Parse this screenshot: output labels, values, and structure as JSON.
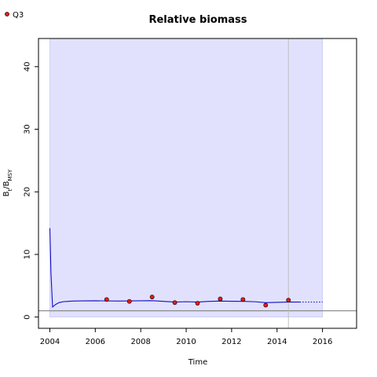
{
  "chart_data": {
    "type": "line",
    "title": "Relative biomass",
    "xlabel": "Time",
    "ylabel": {
      "base": "B",
      "sub1": "t",
      "sep": "/B",
      "sub2": "MSY"
    },
    "xlim": [
      2003.5,
      2017.5
    ],
    "ylim": [
      -1.8,
      44.5
    ],
    "xticks": [
      2004,
      2006,
      2008,
      2010,
      2012,
      2014,
      2016
    ],
    "xtick_labels": [
      "2004",
      "2006",
      "2008",
      "2010",
      "2012",
      "2014",
      "2016"
    ],
    "yticks": [
      0,
      10,
      20,
      30,
      40
    ],
    "ytick_labels": [
      "0",
      "10",
      "20",
      "30",
      "40"
    ],
    "legend": {
      "position": "top-left",
      "entries": [
        "Q3"
      ]
    },
    "shaded_region": {
      "x": [
        2004,
        2016
      ],
      "y": [
        0,
        44.5
      ],
      "color": "#e1e1fd"
    },
    "reference_line": {
      "y": 1,
      "color": "#808080"
    },
    "vertical_line": {
      "x": 2014.5,
      "color": "#bfbfbf"
    },
    "series": [
      {
        "kind": "line",
        "color": "#1010c8",
        "x": [
          2004.0,
          2004.05,
          2004.12,
          2004.25,
          2004.4,
          2004.6,
          2004.8,
          2005.0,
          2005.5,
          2006.0,
          2007.0,
          2008.0,
          2008.5,
          2009.0,
          2009.5,
          2010.0,
          2010.5,
          2011.0,
          2011.5,
          2012.0,
          2012.5,
          2013.0,
          2013.5,
          2014.0,
          2014.5,
          2015.0
        ],
        "y": [
          14.2,
          7.0,
          1.6,
          2.0,
          2.3,
          2.45,
          2.5,
          2.55,
          2.58,
          2.6,
          2.55,
          2.6,
          2.62,
          2.5,
          2.4,
          2.45,
          2.4,
          2.5,
          2.55,
          2.52,
          2.5,
          2.45,
          2.3,
          2.35,
          2.4,
          2.4
        ]
      },
      {
        "kind": "line-dotted",
        "color": "#1010c8",
        "x": [
          2015.0,
          2016.0
        ],
        "y": [
          2.4,
          2.4
        ]
      },
      {
        "kind": "points",
        "name": "Q3",
        "fill": "#e41a1c",
        "x": [
          2006.5,
          2007.5,
          2008.5,
          2009.5,
          2010.5,
          2011.5,
          2012.5,
          2013.5,
          2014.5
        ],
        "y": [
          2.8,
          2.5,
          3.2,
          2.3,
          2.2,
          2.9,
          2.8,
          1.9,
          2.7
        ]
      }
    ]
  }
}
